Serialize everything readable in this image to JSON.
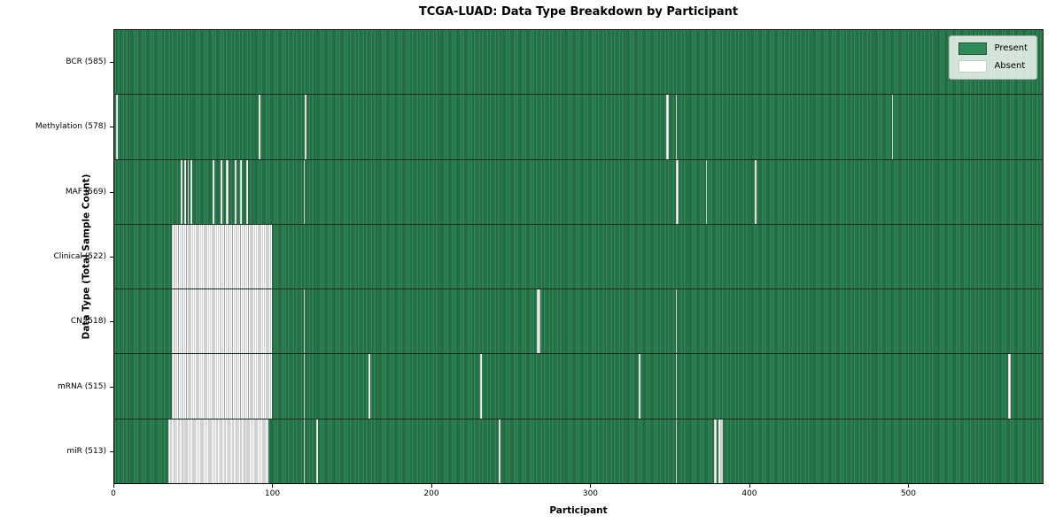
{
  "figure": {
    "title": "TCGA-LUAD: Data Type Breakdown by Participant"
  },
  "chart_data": {
    "type": "heatmap",
    "title": "TCGA-LUAD: Data Type Breakdown by Participant",
    "xlabel": "Participant",
    "ylabel": "Data Type (Total Sample Count)",
    "x_ticks": [
      0,
      100,
      200,
      300,
      400,
      500
    ],
    "x_range": [
      0,
      585
    ],
    "n_participants": 585,
    "grid": false,
    "legend_position": "upper right",
    "legend": [
      {
        "label": "Present",
        "color": "#2e8b57",
        "edge": "#1c4d30"
      },
      {
        "label": "Absent",
        "color": "#ffffff",
        "edge": "#c8c8c8"
      }
    ],
    "colors": {
      "present": "#2e8b57",
      "present_edge": "#1c4d30",
      "absent": "#ffffff",
      "absent_edge": "#a3a3a3",
      "row_divider": "#122b1c",
      "plot_border": "#000000"
    },
    "rows": [
      {
        "name": "BCR",
        "label": "BCR (585)",
        "total": 585,
        "absent_ranges": []
      },
      {
        "name": "Methylation",
        "label": "Methylation (578)",
        "total": 578,
        "absent_ranges": [
          [
            1,
            1
          ],
          [
            91,
            1
          ],
          [
            120,
            1
          ],
          [
            347,
            2
          ],
          [
            353,
            1
          ],
          [
            489,
            1
          ]
        ]
      },
      {
        "name": "MAF",
        "label": "MAF (569)",
        "total": 569,
        "absent_ranges": [
          [
            42,
            1
          ],
          [
            44,
            1
          ],
          [
            46,
            1
          ],
          [
            48,
            1
          ],
          [
            62,
            1
          ],
          [
            67,
            1
          ],
          [
            70,
            2
          ],
          [
            76,
            1
          ],
          [
            79,
            1
          ],
          [
            83,
            1
          ],
          [
            119,
            1
          ],
          [
            353,
            2
          ],
          [
            372,
            1
          ],
          [
            403,
            1
          ]
        ]
      },
      {
        "name": "Clinical",
        "label": "Clinical (522)",
        "total": 522,
        "absent_ranges": [
          [
            36,
            63
          ]
        ]
      },
      {
        "name": "CN",
        "label": "CN (518)",
        "total": 518,
        "absent_ranges": [
          [
            36,
            63
          ],
          [
            119,
            1
          ],
          [
            266,
            2
          ],
          [
            353,
            1
          ]
        ]
      },
      {
        "name": "mRNA",
        "label": "mRNA (515)",
        "total": 515,
        "absent_ranges": [
          [
            36,
            63
          ],
          [
            119,
            1
          ],
          [
            160,
            1
          ],
          [
            230,
            1
          ],
          [
            330,
            1
          ],
          [
            353,
            1
          ],
          [
            562,
            2
          ]
        ]
      },
      {
        "name": "miR",
        "label": "miR (513)",
        "total": 513,
        "absent_ranges": [
          [
            34,
            63
          ],
          [
            119,
            1
          ],
          [
            127,
            1
          ],
          [
            242,
            1
          ],
          [
            353,
            1
          ],
          [
            377,
            2
          ],
          [
            380,
            2
          ],
          [
            382,
            1
          ]
        ]
      }
    ]
  }
}
